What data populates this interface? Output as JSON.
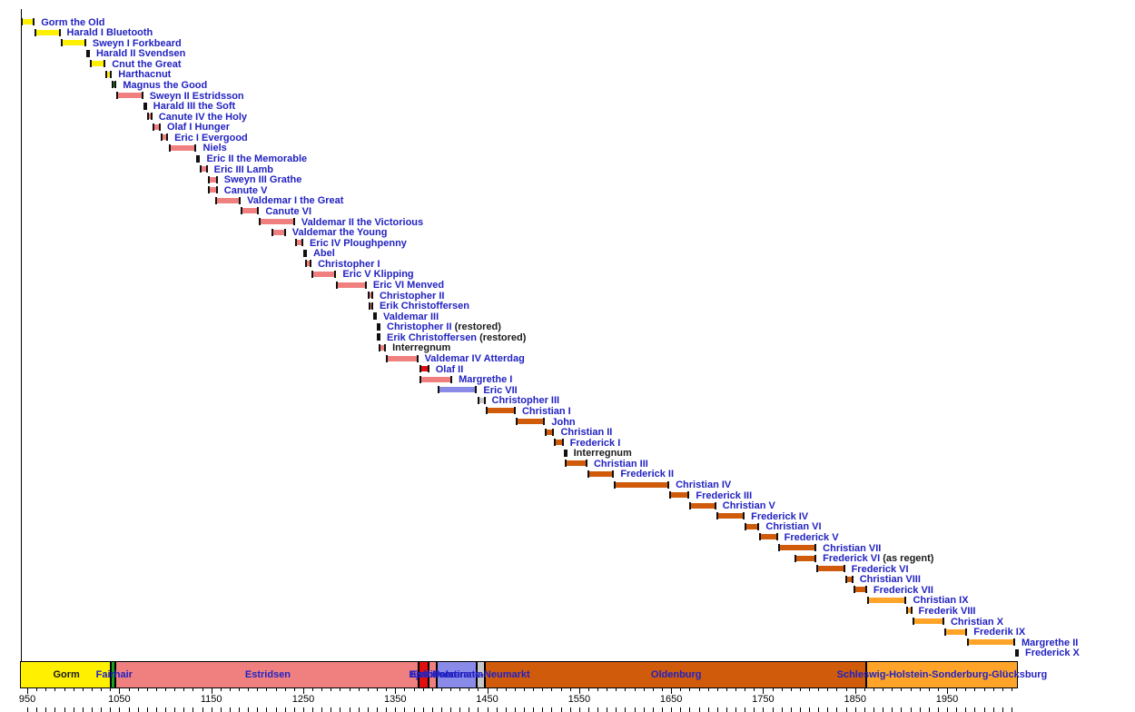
{
  "colors": {
    "label_blue": "#2222C2",
    "label_black": "#1a1a1a",
    "axis_text": "#000000",
    "tick": "#000000"
  },
  "chart_data": {
    "type": "timeline_gantt",
    "description_of_content": "Reign periods of Danish monarchs with royal-house color coding and a dynasty band",
    "axis": {
      "min_year": 943,
      "max_year": 2026,
      "major_tick_years": [
        950,
        1050,
        1150,
        1250,
        1350,
        1450,
        1550,
        1650,
        1750,
        1850,
        1950
      ],
      "minor_tick_step": 10,
      "minor_tick_start": 950,
      "minor_tick_end": 2020
    },
    "houses": {
      "gorm": "#FFF000",
      "fairhair": "#1CA01C",
      "estridsen": "#F08080",
      "bjelbo": "#E01010",
      "pomerania": "#8A8AE8",
      "palatinate": "#C8C8C8",
      "oldenburg": "#CF5B0B",
      "glucksburg": "#FFA428",
      "interregnum": "#000000"
    },
    "monarchs": [
      {
        "name": "Gorm the Old",
        "start": 936,
        "end": 958,
        "house": "gorm"
      },
      {
        "name": "Harald I Bluetooth",
        "start": 958,
        "end": 986,
        "house": "gorm"
      },
      {
        "name": "Sweyn I Forkbeard",
        "start": 986,
        "end": 1014,
        "house": "gorm"
      },
      {
        "name": "Harald II Svendsen",
        "start": 1014,
        "end": 1018,
        "house": "gorm"
      },
      {
        "name": "Cnut the Great",
        "start": 1018,
        "end": 1035,
        "house": "gorm"
      },
      {
        "name": "Harthacnut",
        "start": 1035,
        "end": 1042,
        "house": "gorm"
      },
      {
        "name": "Magnus the Good",
        "start": 1042,
        "end": 1047,
        "house": "fairhair"
      },
      {
        "name": "Sweyn II Estridsson",
        "start": 1047,
        "end": 1076,
        "house": "estridsen"
      },
      {
        "name": "Harald III the Soft",
        "start": 1076,
        "end": 1080,
        "house": "estridsen"
      },
      {
        "name": "Canute IV the Holy",
        "start": 1080,
        "end": 1086,
        "house": "estridsen"
      },
      {
        "name": "Olaf I Hunger",
        "start": 1086,
        "end": 1095,
        "house": "estridsen"
      },
      {
        "name": "Eric I Evergood",
        "start": 1095,
        "end": 1103,
        "house": "estridsen"
      },
      {
        "name": "Niels",
        "start": 1104,
        "end": 1134,
        "house": "estridsen"
      },
      {
        "name": "Eric II the Memorable",
        "start": 1134,
        "end": 1137,
        "house": "estridsen"
      },
      {
        "name": "Eric III Lamb",
        "start": 1137,
        "end": 1146,
        "house": "estridsen"
      },
      {
        "name": "Sweyn III Grathe",
        "start": 1146,
        "end": 1157,
        "house": "estridsen"
      },
      {
        "name": "Canute V",
        "start": 1146,
        "end": 1157,
        "house": "estridsen"
      },
      {
        "name": "Valdemar I the Great",
        "start": 1154,
        "end": 1182,
        "house": "estridsen"
      },
      {
        "name": "Canute VI",
        "start": 1182,
        "end": 1202,
        "house": "estridsen"
      },
      {
        "name": "Valdemar II the Victorious",
        "start": 1202,
        "end": 1241,
        "house": "estridsen"
      },
      {
        "name": "Valdemar the Young",
        "start": 1215,
        "end": 1231,
        "house": "estridsen"
      },
      {
        "name": "Eric IV Ploughpenny",
        "start": 1241,
        "end": 1250,
        "house": "estridsen"
      },
      {
        "name": "Abel",
        "start": 1250,
        "end": 1252,
        "house": "estridsen"
      },
      {
        "name": "Christopher I",
        "start": 1252,
        "end": 1259,
        "house": "estridsen"
      },
      {
        "name": "Eric V Klipping",
        "start": 1259,
        "end": 1286,
        "house": "estridsen"
      },
      {
        "name": "Eric VI Menved",
        "start": 1286,
        "end": 1319,
        "house": "estridsen"
      },
      {
        "name": "Christopher II",
        "start": 1320,
        "end": 1326,
        "house": "estridsen"
      },
      {
        "name": "Erik Christoffersen",
        "start": 1321,
        "end": 1326,
        "house": "estridsen"
      },
      {
        "name": "Valdemar III",
        "start": 1326,
        "end": 1330,
        "house": "estridsen"
      },
      {
        "name": "Christopher II",
        "suffix": "(restored)",
        "start": 1330,
        "end": 1332,
        "house": "estridsen"
      },
      {
        "name": "Erik Christoffersen",
        "suffix": "(restored)",
        "start": 1330,
        "end": 1332,
        "house": "estridsen"
      },
      {
        "name": "Interregnum",
        "start": 1332,
        "end": 1340,
        "house": "estridsen",
        "label_black": true
      },
      {
        "name": "Valdemar IV Atterdag",
        "start": 1340,
        "end": 1375,
        "house": "estridsen"
      },
      {
        "name": "Olaf II",
        "start": 1376,
        "end": 1387,
        "house": "bjelbo"
      },
      {
        "name": "Margrethe I",
        "start": 1376,
        "end": 1412,
        "house": "estridsen"
      },
      {
        "name": "Eric VII",
        "start": 1396,
        "end": 1439,
        "house": "pomerania"
      },
      {
        "name": "Christopher III",
        "start": 1440,
        "end": 1448,
        "house": "palatinate"
      },
      {
        "name": "Christian I",
        "start": 1448,
        "end": 1481,
        "house": "oldenburg"
      },
      {
        "name": "John",
        "start": 1481,
        "end": 1513,
        "house": "oldenburg"
      },
      {
        "name": "Christian II",
        "start": 1513,
        "end": 1523,
        "house": "oldenburg"
      },
      {
        "name": "Frederick I",
        "start": 1523,
        "end": 1533,
        "house": "oldenburg"
      },
      {
        "name": "Interregnum",
        "start": 1533,
        "end": 1534,
        "house": "interregnum",
        "label_black": true
      },
      {
        "name": "Christian III",
        "start": 1534,
        "end": 1559,
        "house": "oldenburg"
      },
      {
        "name": "Frederick II",
        "start": 1559,
        "end": 1588,
        "house": "oldenburg"
      },
      {
        "name": "Christian IV",
        "start": 1588,
        "end": 1648,
        "house": "oldenburg"
      },
      {
        "name": "Frederick III",
        "start": 1648,
        "end": 1670,
        "house": "oldenburg"
      },
      {
        "name": "Christian V",
        "start": 1670,
        "end": 1699,
        "house": "oldenburg"
      },
      {
        "name": "Frederick IV",
        "start": 1699,
        "end": 1730,
        "house": "oldenburg"
      },
      {
        "name": "Christian VI",
        "start": 1730,
        "end": 1746,
        "house": "oldenburg"
      },
      {
        "name": "Frederick V",
        "start": 1746,
        "end": 1766,
        "house": "oldenburg"
      },
      {
        "name": "Christian VII",
        "start": 1766,
        "end": 1808,
        "house": "oldenburg"
      },
      {
        "name": "Frederick VI",
        "suffix": "(as regent)",
        "start": 1784,
        "end": 1808,
        "house": "oldenburg"
      },
      {
        "name": "Frederick VI",
        "start": 1808,
        "end": 1839,
        "house": "oldenburg"
      },
      {
        "name": "Christian VIII",
        "start": 1839,
        "end": 1848,
        "house": "oldenburg"
      },
      {
        "name": "Frederick VII",
        "start": 1848,
        "end": 1863,
        "house": "oldenburg"
      },
      {
        "name": "Christian IX",
        "start": 1863,
        "end": 1906,
        "house": "glucksburg"
      },
      {
        "name": "Frederik VIII",
        "start": 1906,
        "end": 1912,
        "house": "glucksburg"
      },
      {
        "name": "Christian X",
        "start": 1912,
        "end": 1947,
        "house": "glucksburg"
      },
      {
        "name": "Frederik IX",
        "start": 1947,
        "end": 1972,
        "house": "glucksburg"
      },
      {
        "name": "Margrethe II",
        "start": 1972,
        "end": 2024,
        "house": "glucksburg"
      },
      {
        "name": "Frederick X",
        "start": 2024,
        "end": 2026,
        "house": "glucksburg"
      }
    ],
    "dynasty_bar": [
      {
        "name": "Gorm",
        "start": 936,
        "end": 1042,
        "house": "gorm",
        "label_black": true
      },
      {
        "name": "Fairhair",
        "start": 1042,
        "end": 1047,
        "house": "fairhair"
      },
      {
        "name": "Estridsen",
        "start": 1047,
        "end": 1376,
        "house": "estridsen"
      },
      {
        "name": "Bjelbo",
        "start": 1376,
        "end": 1387,
        "house": "bjelbo"
      },
      {
        "name": "Estridsen",
        "start": 1387,
        "end": 1396,
        "house": "estridsen"
      },
      {
        "name": "Pomerania",
        "start": 1396,
        "end": 1440,
        "house": "pomerania"
      },
      {
        "name": "Palatinate-Neumarkt",
        "start": 1440,
        "end": 1448,
        "house": "palatinate"
      },
      {
        "name": "Oldenburg",
        "start": 1448,
        "end": 1863,
        "house": "oldenburg"
      },
      {
        "name": "Schleswig-Holstein-Sonderburg-Glücksburg",
        "start": 1863,
        "end": 2026,
        "house": "glucksburg"
      }
    ]
  }
}
